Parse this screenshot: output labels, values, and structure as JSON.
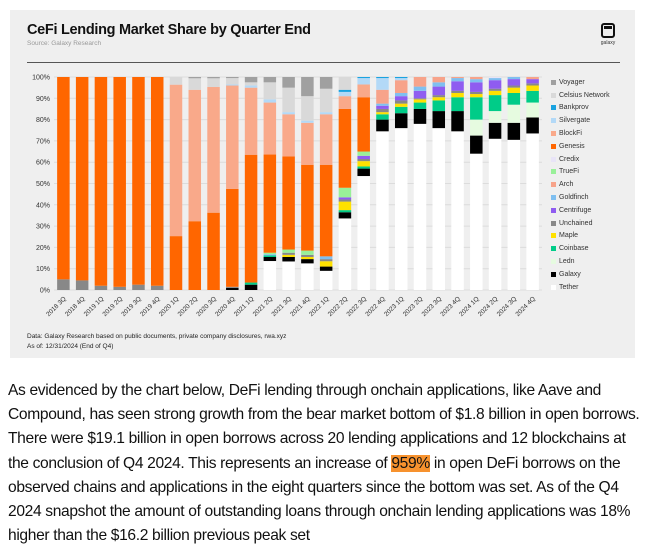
{
  "card": {
    "source": "Source: Galaxy Research",
    "logo_text": "galaxy",
    "footnote_data": "Data: Galaxy Research based on public documents, private company disclosures, rwa.xyz",
    "footnote_asof": "As of: 12/31/2024 (End of Q4)"
  },
  "chart_data": {
    "type": "bar",
    "stacked": true,
    "title": "CeFi Lending Market Share by Quarter End",
    "xlabel": "",
    "ylabel": "",
    "ylim": [
      0,
      100
    ],
    "yticks": [
      "0%",
      "10%",
      "20%",
      "30%",
      "40%",
      "50%",
      "60%",
      "70%",
      "80%",
      "90%",
      "100%"
    ],
    "grid": true,
    "legend_position": "right",
    "categories": [
      "2018 3Q",
      "2018 4Q",
      "2019 1Q",
      "2019 2Q",
      "2019 3Q",
      "2019 4Q",
      "2020 1Q",
      "2020 2Q",
      "2020 3Q",
      "2020 4Q",
      "2021 1Q",
      "2021 2Q",
      "2021 3Q",
      "2021 4Q",
      "2022 1Q",
      "2022 2Q",
      "2022 3Q",
      "2022 4Q",
      "2023 1Q",
      "2023 2Q",
      "2023 3Q",
      "2023 4Q",
      "2024 1Q",
      "2024 2Q",
      "2024 3Q",
      "2024 4Q"
    ],
    "series": [
      {
        "name": "Tether",
        "color": "#ffffff",
        "values": [
          0,
          0,
          0,
          0,
          0,
          0,
          0,
          0,
          0,
          0,
          0,
          13.6,
          13.4,
          12.5,
          9,
          33.6,
          53.5,
          74.5,
          76,
          78,
          76,
          74.5,
          64,
          71,
          70.5,
          73.5
        ]
      },
      {
        "name": "Galaxy",
        "color": "#000000",
        "values": [
          0,
          0,
          0,
          0,
          0,
          0,
          0,
          0,
          0,
          1,
          2.5,
          1.9,
          2.1,
          2,
          2,
          2.9,
          3.5,
          5.5,
          7,
          7,
          8,
          9.5,
          8.5,
          7.5,
          8,
          7.5
        ]
      },
      {
        "name": "Ledn",
        "color": "#e6fbe0",
        "values": [
          0,
          0,
          0,
          0,
          0,
          0,
          0,
          0,
          0,
          0,
          0,
          0,
          0,
          0,
          0,
          0,
          0,
          0,
          0,
          0,
          0,
          0,
          7.5,
          5.5,
          8.5,
          7
        ]
      },
      {
        "name": "Coinbase",
        "color": "#00cc88",
        "values": [
          0,
          0,
          0,
          0,
          0,
          0,
          0,
          0,
          0,
          0,
          1,
          0.7,
          0,
          0,
          0,
          1,
          1,
          2.5,
          3,
          3,
          5,
          6.5,
          10.5,
          7.5,
          5.5,
          5.5
        ]
      },
      {
        "name": "Maple",
        "color": "#ffe100",
        "values": [
          0,
          0,
          0,
          0,
          0,
          0,
          0,
          0,
          0,
          0,
          0,
          0,
          1,
          1,
          2.5,
          4,
          2.5,
          1,
          1.5,
          1.5,
          1.5,
          2,
          1.5,
          2,
          2.5,
          2.5
        ]
      },
      {
        "name": "Unchained",
        "color": "#888888",
        "values": [
          5,
          4.5,
          2,
          1.5,
          2.5,
          2,
          0,
          0,
          0,
          0.5,
          0,
          0,
          1,
          1,
          1,
          1,
          1,
          1.5,
          1.5,
          0.5,
          1,
          1,
          1,
          1,
          1,
          1
        ]
      },
      {
        "name": "Centrifuge",
        "color": "#8f5cf0",
        "values": [
          0,
          0,
          0,
          0,
          0,
          0,
          0,
          0,
          0,
          0,
          0,
          0,
          0,
          0,
          0,
          1,
          1.5,
          1.5,
          2,
          3.5,
          4,
          4.5,
          4.5,
          4,
          3,
          2
        ]
      },
      {
        "name": "Goldfinch",
        "color": "#7fbff0",
        "values": [
          0,
          0,
          0,
          0,
          0,
          0,
          0,
          0,
          0,
          0,
          0,
          0.6,
          0,
          0,
          1.3,
          0,
          0,
          1,
          1.5,
          2,
          2,
          1.5,
          1.5,
          1,
          1,
          0
        ]
      },
      {
        "name": "Arch",
        "color": "#f7a38a",
        "values": [
          0,
          0,
          0,
          0,
          0,
          0,
          0,
          0,
          0,
          0,
          0,
          0,
          0,
          0,
          0,
          0,
          0,
          6.5,
          6,
          4.5,
          2.5,
          0.5,
          1,
          0,
          0,
          1
        ]
      },
      {
        "name": "TrueFi",
        "color": "#99f099",
        "values": [
          0,
          0,
          0,
          0,
          0,
          0,
          0,
          0,
          0,
          0,
          0,
          0.7,
          1.5,
          2,
          0,
          4.5,
          2,
          0,
          0,
          0,
          0,
          0,
          0,
          0,
          0,
          0
        ]
      },
      {
        "name": "Credix",
        "color": "#e8e4f7",
        "values": [
          0,
          0,
          0,
          0,
          0,
          0,
          0,
          0,
          0,
          0,
          0,
          0,
          0,
          0,
          0,
          0,
          0,
          0,
          0,
          0,
          0,
          0,
          0,
          0.5,
          0,
          0
        ]
      },
      {
        "name": "Genesis",
        "color": "#ff6600",
        "values": [
          95,
          95.5,
          98,
          98.5,
          97.5,
          98,
          25.3,
          32.3,
          36.3,
          46,
          60,
          46.1,
          43.7,
          40.3,
          43,
          37,
          25.5,
          0,
          0,
          0,
          0,
          0,
          0,
          0,
          0,
          0
        ]
      },
      {
        "name": "BlockFi",
        "color": "#f9a98a",
        "values": [
          0,
          0,
          0,
          0,
          0,
          0,
          71.1,
          61.7,
          59,
          48.5,
          31.5,
          24.4,
          19.8,
          19.7,
          23.7,
          6,
          6,
          0,
          0,
          0,
          0,
          0,
          0,
          0,
          0,
          0
        ]
      },
      {
        "name": "Silvergate",
        "color": "#b3d9f7",
        "values": [
          0,
          0,
          0,
          0,
          0,
          0,
          0,
          0,
          0,
          0.5,
          1,
          1.5,
          1,
          1,
          1,
          2,
          3,
          5.5,
          1,
          0,
          0,
          0,
          0,
          0,
          0,
          0
        ]
      },
      {
        "name": "Bankprov",
        "color": "#1aa3e0",
        "values": [
          0,
          0,
          0,
          0,
          0,
          0,
          0,
          0,
          0,
          0,
          0,
          0,
          0,
          0,
          0,
          1,
          0.5,
          0.5,
          0.5,
          0,
          0,
          0,
          0,
          0,
          0,
          0
        ]
      },
      {
        "name": "Celsius Network",
        "color": "#d9d9d9",
        "values": [
          0,
          0,
          0,
          0,
          0,
          0,
          3.6,
          5.4,
          4.1,
          3,
          1.5,
          8,
          11.5,
          11.5,
          11,
          6,
          0,
          0,
          0,
          0,
          0,
          0,
          0,
          0,
          0,
          0
        ]
      },
      {
        "name": "Voyager",
        "color": "#a0a0a0",
        "values": [
          0,
          0,
          0,
          0,
          0,
          0,
          0,
          0.6,
          0.6,
          0.5,
          2.5,
          2.5,
          5,
          9,
          5.5,
          0,
          0,
          0,
          0,
          0,
          0,
          0,
          0,
          0,
          0,
          0
        ]
      }
    ]
  },
  "article": {
    "p1": "As evidenced by the chart below, DeFi lending through onchain applications, like Aave and Compound, has seen strong growth from the bear market bottom of $1.8 billion in open borrows. There were $19.1 billion in open borrows across 20 lending applications and 12 blockchains at the conclusion of Q4 2024. This represents an increase of ",
    "highlight": "959%",
    "highlight_color": "#f7922e",
    "p2": " in open DeFi borrows on the observed chains and applications in the eight quarters since the bottom was set. As of the Q4 2024 snapshot the amount of outstanding loans through onchain lending applications was 18% higher than the $16.2 billion previous peak set"
  }
}
